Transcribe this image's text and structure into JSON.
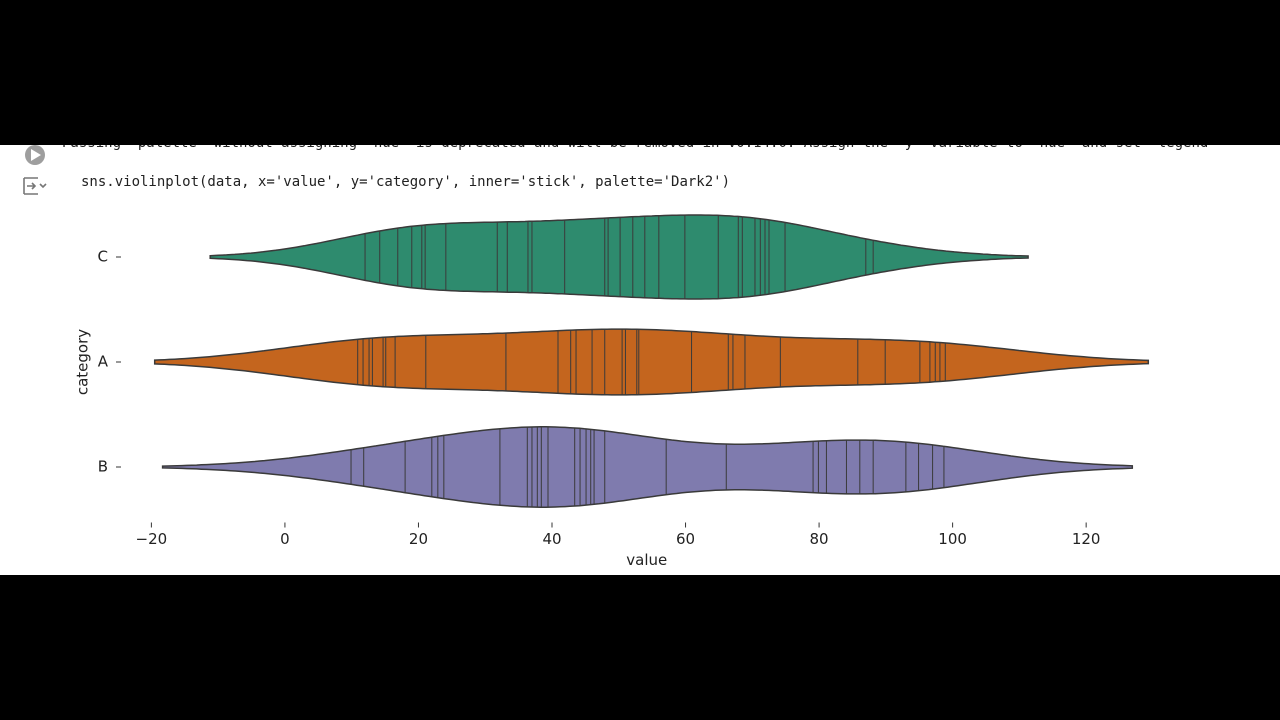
{
  "notebook": {
    "warning": "Passing `palette` without assigning `hue` is deprecated and will be removed in v0.14.0. Assign the `y` variable to `hue` and set `legend=",
    "code": "sns.violinplot(data, x='value', y='category', inner='stick', palette='Dark2')"
  },
  "chart_data": {
    "type": "violin",
    "inner": "stick",
    "xlabel": "value",
    "ylabel": "category",
    "categories": [
      "C",
      "A",
      "B"
    ],
    "series": [
      {
        "color": "#2e8b6e",
        "values": [
          12.0,
          14.2,
          16.9,
          19.0,
          20.5,
          21.0,
          24.1,
          31.8,
          33.3,
          36.4,
          37.0,
          41.9,
          47.9,
          48.4,
          50.2,
          52.1,
          53.9,
          56.0,
          59.9,
          64.9,
          67.9,
          68.5,
          70.4,
          71.2,
          71.9,
          72.5,
          74.9,
          87.0,
          88.1
        ]
      },
      {
        "color": "#c4651e",
        "values": [
          10.9,
          11.7,
          12.6,
          13.1,
          14.7,
          15.1,
          16.5,
          21.1,
          33.1,
          40.9,
          42.8,
          43.6,
          46.0,
          47.9,
          50.5,
          51.0,
          52.7,
          53.0,
          60.9,
          66.4,
          67.1,
          68.9,
          74.2,
          85.8,
          89.9,
          95.1,
          96.6,
          97.4,
          98.1,
          98.9
        ]
      },
      {
        "color": "#7f7bae",
        "values": [
          9.9,
          11.8,
          18.0,
          22.0,
          22.9,
          23.8,
          32.2,
          36.3,
          37.0,
          37.8,
          38.4,
          39.4,
          43.4,
          44.2,
          45.1,
          45.8,
          46.3,
          47.9,
          57.1,
          66.1,
          79.1,
          79.9,
          81.1,
          84.1,
          86.1,
          88.1,
          93.0,
          94.9,
          97.0,
          98.7
        ]
      }
    ],
    "xlim": [
      -25,
      131
    ],
    "xticks": [
      {
        "value": -20,
        "label": "−20"
      },
      0,
      20,
      40,
      60,
      80,
      100,
      120
    ]
  }
}
